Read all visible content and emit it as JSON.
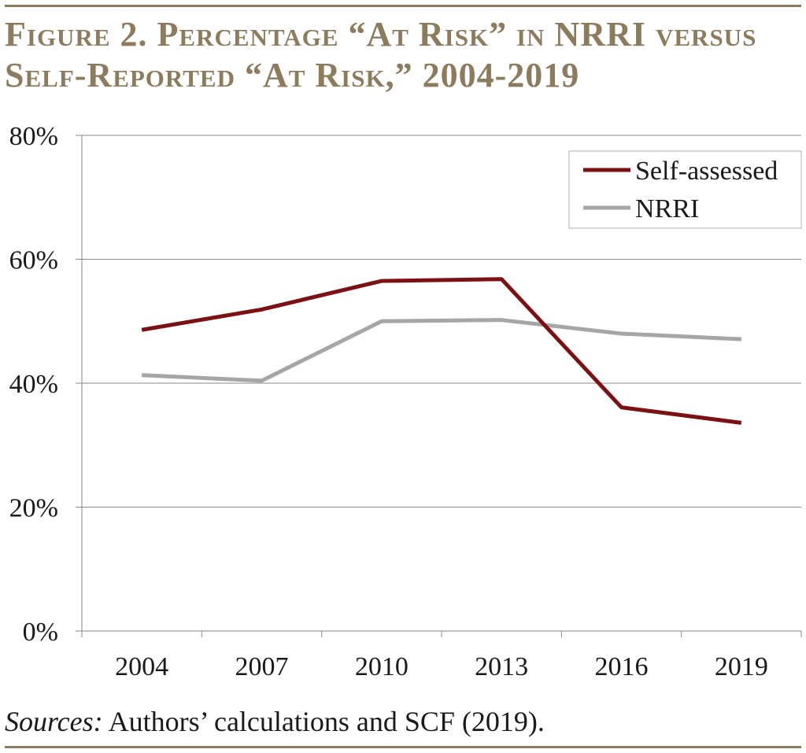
{
  "figure": {
    "title_line1": "Figure 2. Percentage “At Risk” in NRRI versus",
    "title_line2": "Self-Reported “At Risk,” 2004-2019",
    "source_label": "Sources:",
    "source_text": " Authors’ calculations and SCF (2019)."
  },
  "chart_data": {
    "type": "line",
    "title": "Figure 2. Percentage “At Risk” in NRRI versus Self-Reported “At Risk,” 2004-2019",
    "categories": [
      "2004",
      "2007",
      "2010",
      "2013",
      "2016",
      "2019"
    ],
    "ylim": [
      0,
      80
    ],
    "yticks": [
      0,
      20,
      40,
      60,
      80
    ],
    "ytick_labels": [
      "0%",
      "20%",
      "40%",
      "60%",
      "80%"
    ],
    "xlabel": "",
    "ylabel": "",
    "grid": true,
    "legend_position": "top-right",
    "series": [
      {
        "name": "Self-assessed",
        "color": "#7b1113",
        "values": [
          48.6,
          51.9,
          56.5,
          56.8,
          36.1,
          33.6
        ]
      },
      {
        "name": "NRRI",
        "color": "#a6a6a6",
        "values": [
          41.3,
          40.4,
          50.0,
          50.2,
          48.0,
          47.1
        ]
      }
    ]
  }
}
